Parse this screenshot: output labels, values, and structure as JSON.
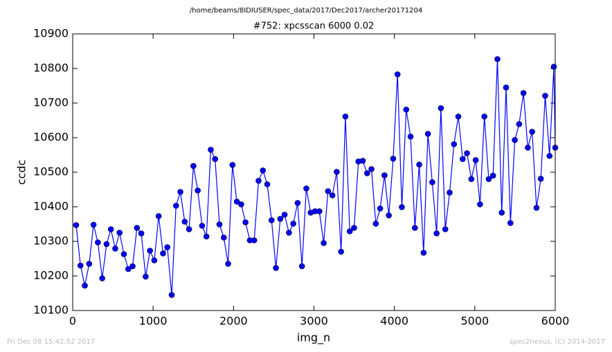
{
  "chart_data": {
    "type": "line",
    "suptitle": "/home/beams/8IDIUSER/spec_data/2017/Dec2017/archer20171204",
    "title": "#752: xpcsscan 6000 0.02",
    "x_label": "img_n",
    "y_label": "ccdc",
    "footer_left": "Fri Dec 08 15:42:52 2017",
    "footer_right": "spec2nexus, (C) 2014-2017",
    "x": [
      43,
      97,
      151,
      205,
      259,
      313,
      367,
      421,
      475,
      529,
      583,
      637,
      691,
      745,
      799,
      853,
      907,
      961,
      1015,
      1069,
      1123,
      1177,
      1231,
      1285,
      1339,
      1393,
      1447,
      1501,
      1555,
      1609,
      1663,
      1717,
      1771,
      1825,
      1879,
      1933,
      1987,
      2041,
      2095,
      2149,
      2203,
      2257,
      2311,
      2365,
      2419,
      2473,
      2527,
      2581,
      2635,
      2689,
      2743,
      2797,
      2851,
      2905,
      2959,
      3013,
      3067,
      3121,
      3175,
      3229,
      3283,
      3337,
      3391,
      3445,
      3499,
      3553,
      3607,
      3661,
      3715,
      3769,
      3823,
      3877,
      3931,
      3985,
      4039,
      4093,
      4147,
      4201,
      4255,
      4309,
      4363,
      4417,
      4471,
      4525,
      4579,
      4633,
      4687,
      4741,
      4795,
      4849,
      4903,
      4957,
      5011,
      5065,
      5119,
      5173,
      5227,
      5281,
      5335,
      5389,
      5443,
      5497,
      5551,
      5605,
      5659,
      5713,
      5767,
      5821,
      5875,
      5929,
      5983,
      6000
    ],
    "series": [
      {
        "name": "ccdc",
        "color": "#0000ff",
        "values": [
          10347,
          10230,
          10172,
          10235,
          10348,
          10297,
          10193,
          10292,
          10335,
          10279,
          10325,
          10263,
          10220,
          10228,
          10339,
          10323,
          10198,
          10273,
          10245,
          10373,
          10265,
          10283,
          10145,
          10403,
          10443,
          10357,
          10335,
          10518,
          10447,
          10345,
          10314,
          10565,
          10538,
          10349,
          10311,
          10235,
          10521,
          10415,
          10407,
          10355,
          10303,
          10303,
          10475,
          10505,
          10465,
          10361,
          10223,
          10365,
          10377,
          10325,
          10351,
          10411,
          10228,
          10453,
          10383,
          10387,
          10387,
          10295,
          10445,
          10433,
          10501,
          10270,
          10661,
          10329,
          10339,
          10531,
          10533,
          10497,
          10509,
          10351,
          10395,
          10491,
          10375,
          10539,
          10783,
          10399,
          10681,
          10603,
          10339,
          10522,
          10267,
          10611,
          10471,
          10323,
          10685,
          10335,
          10441,
          10581,
          10661,
          10538,
          10555,
          10480,
          10535,
          10407,
          10661,
          10480,
          10490,
          10827,
          10383,
          10745,
          10353,
          10593,
          10639,
          10729,
          10571,
          10617,
          10397,
          10481,
          10721,
          10547,
          10805,
          10571
        ]
      }
    ],
    "xlim": [
      0,
      6000
    ],
    "xticks": [
      0,
      1000,
      2000,
      3000,
      4000,
      5000,
      6000
    ],
    "ylim": [
      10100,
      10900
    ],
    "yticks": [
      10100,
      10200,
      10300,
      10400,
      10500,
      10600,
      10700,
      10800,
      10900
    ],
    "grid": false
  }
}
